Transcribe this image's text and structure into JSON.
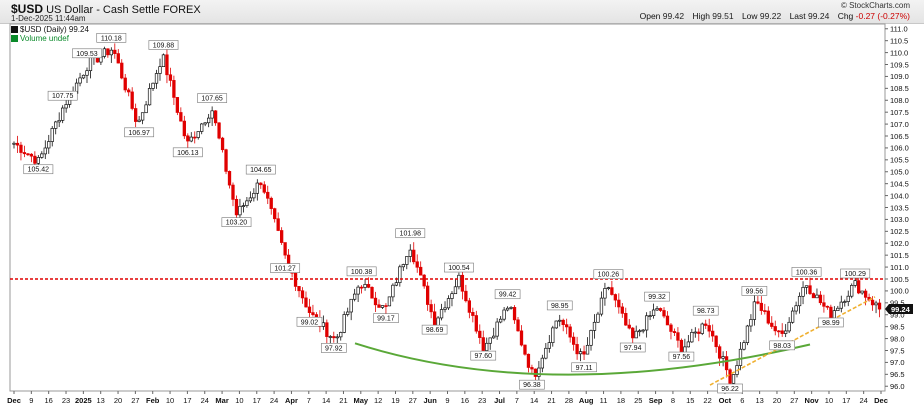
{
  "header": {
    "symbol": "$USD",
    "name": "US Dollar - Cash Settle FOREX",
    "date": "1-Dec-2025 11:44am",
    "open_label": "Open",
    "open": "99.42",
    "high_label": "High",
    "high": "99.51",
    "low_label": "Low",
    "low": "99.22",
    "last_label": "Last",
    "last": "99.24",
    "chg_label": "Chg",
    "chg": "-0.27 (-0.27%)",
    "watermark": "© StockCharts.com",
    "legend_series": "$USD (Daily) 99.24",
    "legend_volume": "Volume undef"
  },
  "chart_data": {
    "type": "candlestick",
    "title": "$USD US Dollar - Cash Settle FOREX",
    "series_name": "$USD (Daily)",
    "ylim": [
      95.8,
      111.2
    ],
    "yticks": [
      96.0,
      96.5,
      97.0,
      97.5,
      98.0,
      98.5,
      99.0,
      99.5,
      100.0,
      100.5,
      101.0,
      101.5,
      102.0,
      102.5,
      103.0,
      103.5,
      104.0,
      104.5,
      105.0,
      105.5,
      106.0,
      106.5,
      107.0,
      107.5,
      108.0,
      108.5,
      109.0,
      109.5,
      110.0,
      110.5,
      111.0
    ],
    "last_value": 99.24,
    "x_labels": [
      "Dec",
      "9",
      "16",
      "23",
      "2025",
      "13",
      "20",
      "27",
      "Feb",
      "10",
      "17",
      "24",
      "Mar",
      "10",
      "17",
      "24",
      "Apr",
      "7",
      "14",
      "21",
      "May",
      "12",
      "19",
      "27",
      "Jun",
      "9",
      "16",
      "23",
      "Jul",
      "7",
      "14",
      "21",
      "28",
      "Aug",
      "11",
      "18",
      "25",
      "Sep",
      "8",
      "15",
      "22",
      "Oct",
      "6",
      "13",
      "20",
      "27",
      "Nov",
      "10",
      "17",
      "24",
      "Dec"
    ],
    "annotations": [
      {
        "label": "105.42",
        "value": 105.42
      },
      {
        "label": "107.75",
        "value": 107.75
      },
      {
        "label": "109.53",
        "value": 109.53
      },
      {
        "label": "110.18",
        "value": 110.18
      },
      {
        "label": "106.97",
        "value": 106.97
      },
      {
        "label": "109.88",
        "value": 109.88
      },
      {
        "label": "106.13",
        "value": 106.13
      },
      {
        "label": "107.65",
        "value": 107.65
      },
      {
        "label": "103.20",
        "value": 103.2
      },
      {
        "label": "104.65",
        "value": 104.65
      },
      {
        "label": "101.27",
        "value": 101.27
      },
      {
        "label": "99.02",
        "value": 99.02
      },
      {
        "label": "97.92",
        "value": 97.92
      },
      {
        "label": "100.38",
        "value": 100.38
      },
      {
        "label": "99.17",
        "value": 99.17
      },
      {
        "label": "101.98",
        "value": 101.98
      },
      {
        "label": "98.69",
        "value": 98.69
      },
      {
        "label": "100.54",
        "value": 100.54
      },
      {
        "label": "97.60",
        "value": 97.6
      },
      {
        "label": "99.42",
        "value": 99.42
      },
      {
        "label": "96.38",
        "value": 96.38
      },
      {
        "label": "98.95",
        "value": 98.95
      },
      {
        "label": "97.11",
        "value": 97.11
      },
      {
        "label": "100.26",
        "value": 100.26
      },
      {
        "label": "97.94",
        "value": 97.94
      },
      {
        "label": "99.32",
        "value": 99.32
      },
      {
        "label": "97.56",
        "value": 97.56
      },
      {
        "label": "98.73",
        "value": 98.73
      },
      {
        "label": "96.22",
        "value": 96.22
      },
      {
        "label": "99.56",
        "value": 99.56
      },
      {
        "label": "98.03",
        "value": 98.03
      },
      {
        "label": "100.36",
        "value": 100.36
      },
      {
        "label": "98.99",
        "value": 98.99
      },
      {
        "label": "100.29",
        "value": 100.29
      }
    ],
    "resistance_line": 100.5,
    "colors": {
      "up": "#111111",
      "down": "#e00000",
      "resistance": "#e00000",
      "arc": "#5aa838",
      "trend": "#f0b030",
      "price_tag": "#111111"
    }
  }
}
